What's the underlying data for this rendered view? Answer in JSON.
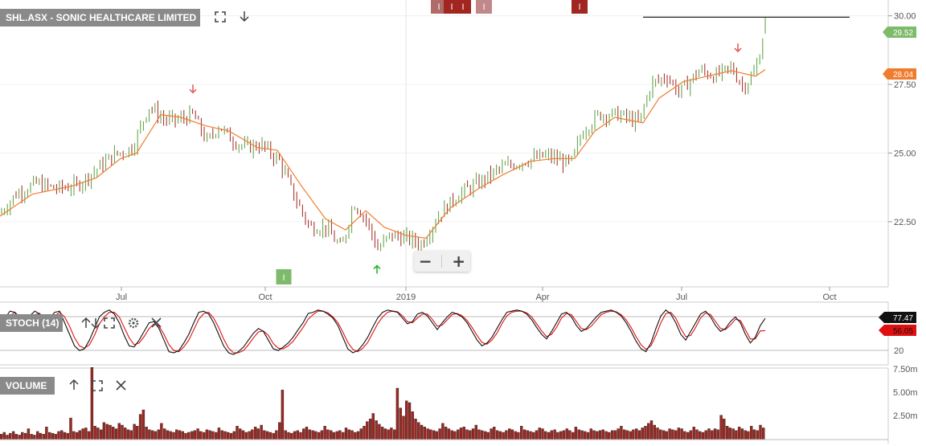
{
  "main_panel": {
    "title": "SHL.ASX - SONIC HEALTHCARE LIMITED",
    "fullscreen_icon": "expand-icon",
    "down_icon": "arrow-down-icon",
    "last_price_label": "29.52",
    "ma_value_label": "28.04",
    "colors": {
      "up": "#5a9e3c",
      "down": "#a0261f",
      "ma": "#f07d2e",
      "last_badge": "#7dbb6a",
      "ma_badge": "#f07d2e"
    }
  },
  "zoom": {
    "minus": "−",
    "plus": "+"
  },
  "stoch_panel": {
    "title": "STOCH (14)",
    "icons": [
      "arrow-up-icon",
      "arrow-down-icon",
      "expand-icon",
      "gear-icon",
      "close-icon"
    ],
    "k_label": "77.47",
    "d_label": "56.05",
    "tick_labels": [
      "20"
    ],
    "colors": {
      "k": "#111111",
      "d": "#e01010"
    }
  },
  "volume_panel": {
    "title": "VOLUME",
    "icons": [
      "arrow-up-icon",
      "expand-icon",
      "close-icon"
    ],
    "tick_labels": [
      "7.50m",
      "5.00m",
      "2.50m"
    ],
    "colors": {
      "bar": "#a0261f"
    }
  },
  "chart_data": {
    "type": "candlestick",
    "x_tick_labels": [
      "Jul",
      "Oct",
      "2019",
      "Apr",
      "Jul",
      "Oct"
    ],
    "y_tick_labels": [
      "30.00",
      "27.50",
      "25.00",
      "22.50"
    ],
    "y_ticks": [
      30.0,
      27.5,
      25.0,
      22.5
    ],
    "ylim": [
      20.3,
      30.4
    ],
    "resistance_level": 29.95,
    "price_path": [
      [
        0,
        22.8
      ],
      [
        20,
        23.5
      ],
      [
        45,
        23.9
      ],
      [
        70,
        23.7
      ],
      [
        95,
        23.8
      ],
      [
        120,
        24.4
      ],
      [
        140,
        24.9
      ],
      [
        165,
        25.2
      ],
      [
        185,
        26.7
      ],
      [
        205,
        26.2
      ],
      [
        222,
        26.2
      ],
      [
        240,
        26.4
      ],
      [
        258,
        25.4
      ],
      [
        272,
        26.0
      ],
      [
        288,
        25.5
      ],
      [
        305,
        25.2
      ],
      [
        325,
        25.3
      ],
      [
        348,
        24.7
      ],
      [
        365,
        23.5
      ],
      [
        385,
        22.3
      ],
      [
        405,
        22.3
      ],
      [
        425,
        21.5
      ],
      [
        440,
        23.2
      ],
      [
        455,
        22.6
      ],
      [
        470,
        21.5
      ],
      [
        485,
        22.0
      ],
      [
        505,
        21.9
      ],
      [
        525,
        21.7
      ],
      [
        545,
        22.7
      ],
      [
        570,
        23.5
      ],
      [
        595,
        23.9
      ],
      [
        620,
        24.4
      ],
      [
        650,
        24.7
      ],
      [
        680,
        24.9
      ],
      [
        710,
        24.6
      ],
      [
        725,
        25.8
      ],
      [
        745,
        26.4
      ],
      [
        770,
        26.4
      ],
      [
        795,
        26.1
      ],
      [
        810,
        27.5
      ],
      [
        830,
        27.8
      ],
      [
        845,
        27.2
      ],
      [
        870,
        28.0
      ],
      [
        890,
        27.8
      ],
      [
        910,
        28.1
      ],
      [
        925,
        27.4
      ],
      [
        940,
        28.0
      ],
      [
        952,
        29.52
      ]
    ],
    "ma_path": [
      [
        0,
        22.7
      ],
      [
        40,
        23.5
      ],
      [
        90,
        23.8
      ],
      [
        120,
        24.1
      ],
      [
        150,
        24.8
      ],
      [
        170,
        25.0
      ],
      [
        200,
        26.4
      ],
      [
        225,
        26.3
      ],
      [
        255,
        26.0
      ],
      [
        285,
        25.8
      ],
      [
        320,
        25.2
      ],
      [
        345,
        25.1
      ],
      [
        375,
        23.8
      ],
      [
        405,
        22.6
      ],
      [
        430,
        22.2
      ],
      [
        455,
        22.9
      ],
      [
        478,
        22.3
      ],
      [
        505,
        22.0
      ],
      [
        530,
        21.9
      ],
      [
        560,
        23.0
      ],
      [
        595,
        23.7
      ],
      [
        625,
        24.2
      ],
      [
        660,
        24.7
      ],
      [
        690,
        24.8
      ],
      [
        715,
        24.8
      ],
      [
        740,
        25.8
      ],
      [
        765,
        26.3
      ],
      [
        800,
        26.1
      ],
      [
        820,
        27.0
      ],
      [
        850,
        27.6
      ],
      [
        880,
        27.8
      ],
      [
        910,
        28.0
      ],
      [
        940,
        27.8
      ],
      [
        952,
        28.04
      ]
    ],
    "signal_markers": [
      {
        "type": "sell",
        "x": 240,
        "y": 27.2
      },
      {
        "type": "buy",
        "x": 469,
        "y": 20.9
      },
      {
        "type": "sell",
        "x": 918,
        "y": 28.7
      }
    ],
    "event_badges": [
      {
        "label": "I",
        "x": 353,
        "position": "bottom",
        "color": "#7dbb6a"
      },
      {
        "label": "I",
        "x": 546,
        "position": "top",
        "color": "#b06a6a"
      },
      {
        "label": "I",
        "x": 562,
        "position": "top",
        "color": "#a0261f"
      },
      {
        "label": "I",
        "x": 576,
        "position": "top",
        "color": "#a0261f"
      },
      {
        "label": "I",
        "x": 602,
        "position": "top",
        "color": "#c08888"
      },
      {
        "label": "I",
        "x": 721,
        "position": "top",
        "color": "#a0261f"
      }
    ],
    "stoch_ylim": [
      0,
      100
    ],
    "stoch_reference_levels": [
      80,
      20
    ],
    "stoch_k": [
      70,
      78,
      90,
      88,
      72,
      60,
      82,
      90,
      85,
      65,
      78,
      88,
      90,
      70,
      50,
      30,
      22,
      25,
      40,
      60,
      80,
      88,
      92,
      85,
      70,
      48,
      30,
      28,
      40,
      55,
      70,
      72,
      60,
      40,
      20,
      18,
      22,
      35,
      50,
      70,
      88,
      90,
      85,
      70,
      50,
      30,
      18,
      15,
      20,
      28,
      40,
      52,
      60,
      55,
      40,
      25,
      22,
      28,
      35,
      45,
      58,
      70,
      86,
      88,
      92,
      90,
      85,
      78,
      65,
      45,
      25,
      18,
      22,
      32,
      45,
      62,
      78,
      88,
      92,
      90,
      88,
      78,
      68,
      72,
      85,
      88,
      82,
      70,
      58,
      70,
      80,
      88,
      85,
      80,
      70,
      55,
      40,
      30,
      35,
      45,
      60,
      75,
      88,
      90,
      92,
      90,
      85,
      75,
      62,
      50,
      42,
      55,
      70,
      85,
      88,
      80,
      65,
      55,
      60,
      70,
      80,
      88,
      90,
      92,
      88,
      82,
      70,
      55,
      38,
      25,
      20,
      35,
      60,
      82,
      92,
      85,
      70,
      50,
      40,
      55,
      70,
      85,
      90,
      80,
      65,
      55,
      60,
      72,
      80,
      70,
      50,
      35,
      45,
      65,
      77.47
    ],
    "stoch_d": [
      65,
      72,
      82,
      88,
      80,
      68,
      72,
      84,
      86,
      75,
      75,
      82,
      88,
      80,
      64,
      44,
      30,
      26,
      32,
      48,
      68,
      80,
      88,
      88,
      80,
      62,
      44,
      32,
      35,
      46,
      60,
      68,
      64,
      50,
      32,
      22,
      20,
      28,
      40,
      58,
      76,
      86,
      88,
      78,
      62,
      42,
      26,
      18,
      18,
      22,
      32,
      44,
      54,
      56,
      48,
      34,
      26,
      25,
      30,
      38,
      50,
      62,
      76,
      84,
      90,
      90,
      87,
      80,
      70,
      54,
      36,
      24,
      20,
      26,
      36,
      52,
      68,
      80,
      88,
      90,
      89,
      82,
      72,
      70,
      78,
      85,
      85,
      76,
      64,
      66,
      75,
      84,
      86,
      82,
      74,
      62,
      48,
      36,
      33,
      40,
      52,
      68,
      82,
      88,
      90,
      90,
      87,
      80,
      68,
      56,
      46,
      50,
      62,
      78,
      86,
      84,
      72,
      60,
      58,
      64,
      74,
      84,
      88,
      90,
      89,
      84,
      75,
      62,
      46,
      32,
      24,
      30,
      48,
      70,
      86,
      88,
      78,
      60,
      46,
      48,
      62,
      78,
      87,
      84,
      72,
      60,
      58,
      66,
      76,
      74,
      58,
      42,
      42,
      56,
      56.05
    ],
    "volume_max": 8.2,
    "volume": [
      0.6,
      0.8,
      0.5,
      0.7,
      0.9,
      0.6,
      0.5,
      0.8,
      0.7,
      1.2,
      0.6,
      0.5,
      0.9,
      0.7,
      0.6,
      1.4,
      0.8,
      0.7,
      0.6,
      0.9,
      1.0,
      0.8,
      0.7,
      2.4,
      0.9,
      0.8,
      1.0,
      1.2,
      1.3,
      0.9,
      8.0,
      1.5,
      1.3,
      1.1,
      1.9,
      1.7,
      1.6,
      1.4,
      1.2,
      1.8,
      1.6,
      1.3,
      1.1,
      1.0,
      1.7,
      1.5,
      2.8,
      3.3,
      1.4,
      1.1,
      1.0,
      0.9,
      1.1,
      1.8,
      1.2,
      1.0,
      0.9,
      0.8,
      1.1,
      1.0,
      0.9,
      0.7,
      0.8,
      0.9,
      1.0,
      1.2,
      0.9,
      0.8,
      1.1,
      1.0,
      0.9,
      0.8,
      1.3,
      1.0,
      0.9,
      0.8,
      0.7,
      0.9,
      1.5,
      1.2,
      1.0,
      0.8,
      0.9,
      1.1,
      1.4,
      1.2,
      1.6,
      1.0,
      0.9,
      0.8,
      0.7,
      1.0,
      1.9,
      5.5,
      1.0,
      0.8,
      0.7,
      0.9,
      1.0,
      0.8,
      1.2,
      1.4,
      1.1,
      1.0,
      0.9,
      0.8,
      1.0,
      1.5,
      1.1,
      1.0,
      0.8,
      0.9,
      1.0,
      0.8,
      1.3,
      1.1,
      1.0,
      0.8,
      0.9,
      1.2,
      1.5,
      2.0,
      2.3,
      2.9,
      2.1,
      1.7,
      1.4,
      1.2,
      1.1,
      1.3,
      1.1,
      5.7,
      3.5,
      2.6,
      4.3,
      4.1,
      3.1,
      2.3,
      1.9,
      1.6,
      1.4,
      1.2,
      1.1,
      1.0,
      0.9,
      1.2,
      1.8,
      1.4,
      1.2,
      1.0,
      0.9,
      1.1,
      1.3,
      1.4,
      1.1,
      1.0,
      1.2,
      1.6,
      1.1,
      1.0,
      0.9,
      0.8,
      1.2,
      1.4,
      1.0,
      0.9,
      0.8,
      1.0,
      1.2,
      1.1,
      0.9,
      0.8,
      1.5,
      1.1,
      1.0,
      0.9,
      0.8,
      1.0,
      1.3,
      1.2,
      0.9,
      0.8,
      1.0,
      1.1,
      0.8,
      0.9,
      1.0,
      1.2,
      1.0,
      0.8,
      1.4,
      1.1,
      1.0,
      0.9,
      0.8,
      1.2,
      1.0,
      0.9,
      1.0,
      1.1,
      0.9,
      0.8,
      1.0,
      1.0,
      1.2,
      1.5,
      1.1,
      1.0,
      0.9,
      1.1,
      1.2,
      1.0,
      1.3,
      1.5,
      1.8,
      2.1,
      1.6,
      1.3,
      1.1,
      1.0,
      0.9,
      1.2,
      1.1,
      1.0,
      1.3,
      1.2,
      0.9,
      0.8,
      1.0,
      1.4,
      1.1,
      0.9,
      0.8,
      1.0,
      1.2,
      1.0,
      1.2,
      1.1,
      2.7,
      2.3,
      1.5,
      1.3,
      1.2,
      1.0,
      1.4,
      1.2,
      1.0,
      0.9,
      1.5,
      1.1,
      1.0,
      1.6,
      1.3
    ]
  }
}
